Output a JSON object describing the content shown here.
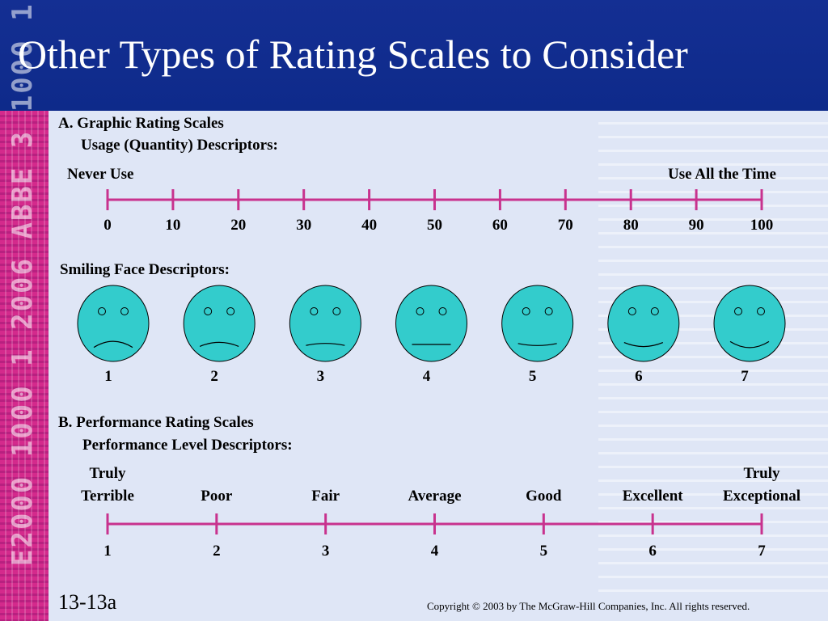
{
  "slide": {
    "title": "Other Types of Rating Scales to Consider",
    "slide_number": "13-13a",
    "copyright": "Copyright © 2003 by The McGraw-Hill Companies, Inc.  All rights reserved.",
    "side_code": "E2000 1000 1 2006 ABBE 3 1000 1",
    "colors": {
      "title_bar": "#0f2c8e",
      "content_bg": "#dfe6f6",
      "scale_line": "#c8328e",
      "face_fill": "#33cccc",
      "side_strip": "#d42a8c"
    }
  },
  "section_a": {
    "heading": "A. Graphic Rating Scales",
    "subheading": "Usage (Quantity) Descriptors:",
    "left_anchor": "Never Use",
    "right_anchor": "Use All the Time",
    "ticks": [
      "0",
      "10",
      "20",
      "30",
      "40",
      "50",
      "60",
      "70",
      "80",
      "90",
      "100"
    ]
  },
  "faces": {
    "heading": "Smiling Face Descriptors:",
    "labels": [
      "1",
      "2",
      "3",
      "4",
      "5",
      "6",
      "7"
    ],
    "mouth_curvature": [
      -3,
      -2,
      -1,
      0,
      1,
      2,
      3
    ]
  },
  "section_b": {
    "heading": "B. Performance Rating Scales",
    "subheading": "Performance Level Descriptors:",
    "levels": [
      {
        "line1": "Truly",
        "line2": "Terrible",
        "number": "1"
      },
      {
        "line1": "",
        "line2": "Poor",
        "number": "2"
      },
      {
        "line1": "",
        "line2": "Fair",
        "number": "3"
      },
      {
        "line1": "",
        "line2": "Average",
        "number": "4"
      },
      {
        "line1": "",
        "line2": "Good",
        "number": "5"
      },
      {
        "line1": "",
        "line2": "Excellent",
        "number": "6"
      },
      {
        "line1": "Truly",
        "line2": "Exceptional",
        "number": "7"
      }
    ]
  }
}
